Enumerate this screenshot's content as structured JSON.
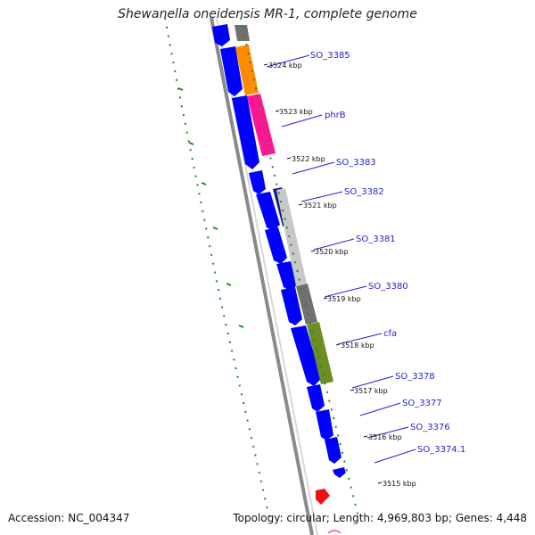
{
  "title": "Shewanella oneidensis MR-1, complete genome",
  "footer": {
    "accession": "Accession: NC_004347",
    "topology": "Topology: circular; Length: 4,969,803 bp; Genes: 4,448"
  },
  "colors": {
    "forward_gene": "#0000ff",
    "red_gene": "#ee1111",
    "gc_green": "#1e8c1e",
    "backbone": "#888888"
  },
  "genes": [
    {
      "label": "SO_3385",
      "color": "#ff8c00"
    },
    {
      "label": "phrB",
      "color": "#ff1493"
    },
    {
      "label": "SO_3383",
      "color": "#0000ff"
    },
    {
      "label": "SO_3382",
      "color": "#1a1a8c"
    },
    {
      "label": "SO_3381",
      "color": "#c8c8c8"
    },
    {
      "label": "SO_3380",
      "color": "#707070"
    },
    {
      "label": "cfa",
      "color": "#6b8e23"
    },
    {
      "label": "SO_3378",
      "color": "#0000ff"
    },
    {
      "label": "SO_3377",
      "color": "#0000ff"
    },
    {
      "label": "SO_3376",
      "color": "#0000ff"
    },
    {
      "label": "SO_3374.1",
      "color": "#0000ff"
    }
  ],
  "ticks": [
    {
      "label": "3524 kbp",
      "value": 3524
    },
    {
      "label": "3523 kbp",
      "value": 3523
    },
    {
      "label": "3522 kbp",
      "value": 3522
    },
    {
      "label": "3521 kbp",
      "value": 3521
    },
    {
      "label": "3520 kbp",
      "value": 3520
    },
    {
      "label": "3519 kbp",
      "value": 3519
    },
    {
      "label": "3518 kbp",
      "value": 3518
    },
    {
      "label": "3517 kbp",
      "value": 3517
    },
    {
      "label": "3516 kbp",
      "value": 3516
    },
    {
      "label": "3515 kbp",
      "value": 3515
    }
  ]
}
